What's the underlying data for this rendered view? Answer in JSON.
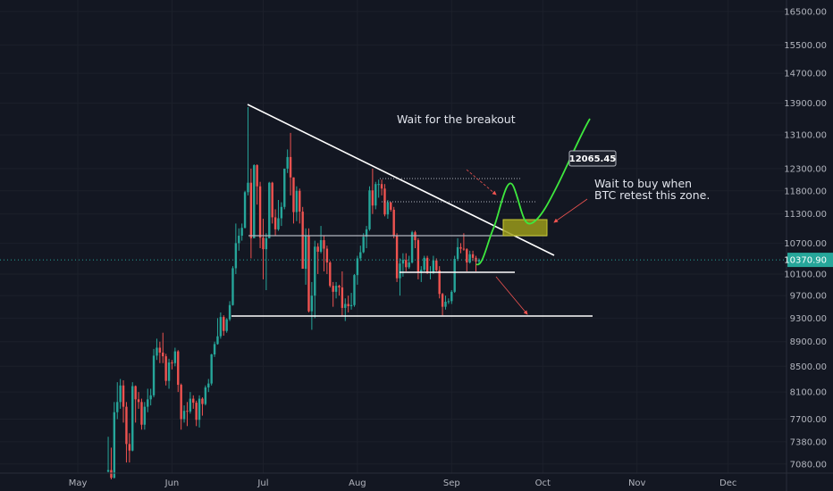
{
  "chart_data": {
    "type": "candlestick",
    "log_scale": true,
    "grid": true,
    "up_color": "#26a69a",
    "down_color": "#ef5350",
    "xlim": [
      -25.6,
      233.2
    ],
    "xticks": [
      {
        "value": 0,
        "label": "May"
      },
      {
        "value": 31,
        "label": "Jun"
      },
      {
        "value": 61,
        "label": "Jul"
      },
      {
        "value": 92,
        "label": "Aug"
      },
      {
        "value": 123,
        "label": "Sep"
      },
      {
        "value": 153,
        "label": "Oct"
      },
      {
        "value": 184,
        "label": "Nov"
      },
      {
        "value": 214,
        "label": "Dec"
      }
    ],
    "ylim": [
      6960,
      16860
    ],
    "yticks": [
      {
        "value": 16500,
        "label": "16500.00"
      },
      {
        "value": 15500,
        "label": "15500.00"
      },
      {
        "value": 14700,
        "label": "14700.00"
      },
      {
        "value": 13900,
        "label": "13900.00"
      },
      {
        "value": 13100,
        "label": "13100.00"
      },
      {
        "value": 12300,
        "label": "12300.00"
      },
      {
        "value": 11800,
        "label": "11800.00"
      },
      {
        "value": 11300,
        "label": "11300.00"
      },
      {
        "value": 10700,
        "label": "10700.00"
      },
      {
        "value": 10100,
        "label": "10100.00"
      },
      {
        "value": 9700,
        "label": "9700.00"
      },
      {
        "value": 9300,
        "label": "9300.00"
      },
      {
        "value": 8900,
        "label": "8900.00"
      },
      {
        "value": 8500,
        "label": "8500.00"
      },
      {
        "value": 8100,
        "label": "8100.00"
      },
      {
        "value": 7700,
        "label": "7700.00"
      },
      {
        "value": 7380,
        "label": "7380.00"
      },
      {
        "value": 7080,
        "label": "7080.00"
      }
    ],
    "last_price": {
      "value": 10370.9,
      "label": "10370.90",
      "color": "#26a69a"
    },
    "annotations": {
      "breakout": "Wait for the breakout",
      "retest": [
        "Wait to buy when",
        "BTC retest this zone."
      ],
      "price_tag": "12065.45"
    },
    "x": [
      10,
      11,
      12,
      13,
      14,
      15,
      16,
      17,
      18,
      19,
      20,
      21,
      22,
      23,
      24,
      25,
      26,
      27,
      28,
      29,
      30,
      31,
      32,
      33,
      34,
      35,
      36,
      37,
      38,
      39,
      40,
      41,
      42,
      43,
      44,
      45,
      46,
      47,
      48,
      49,
      50,
      51,
      52,
      53,
      54,
      55,
      56,
      57,
      58,
      59,
      60,
      61,
      62,
      63,
      64,
      65,
      66,
      67,
      68,
      69,
      70,
      71,
      72,
      73,
      74,
      75,
      76,
      77,
      78,
      79,
      80,
      81,
      82,
      83,
      84,
      85,
      86,
      87,
      88,
      89,
      90,
      91,
      92,
      93,
      94,
      95,
      96,
      97,
      98,
      99,
      100,
      101,
      102,
      103,
      104,
      105,
      106,
      107,
      108,
      109,
      110,
      111,
      112,
      113,
      114,
      115,
      116,
      117,
      118,
      119,
      120,
      121,
      122,
      123,
      124,
      125,
      126,
      127,
      128,
      129,
      130,
      131,
      132
    ],
    "candles": [
      [
        6980,
        7450,
        6970,
        7000
      ],
      [
        7000,
        7300,
        6880,
        6900
      ],
      [
        6900,
        7950,
        6890,
        7800
      ],
      [
        7800,
        8250,
        7700,
        7950
      ],
      [
        7950,
        8300,
        7850,
        8200
      ],
      [
        8200,
        8280,
        7650,
        7880
      ],
      [
        7880,
        7950,
        7100,
        7350
      ],
      [
        7350,
        7500,
        7100,
        7260
      ],
      [
        7260,
        8250,
        7250,
        8190
      ],
      [
        8190,
        8200,
        7650,
        7990
      ],
      [
        7990,
        8100,
        7850,
        7950
      ],
      [
        7950,
        8000,
        7550,
        7620
      ],
      [
        7620,
        7950,
        7550,
        7880
      ],
      [
        7880,
        8150,
        7800,
        7990
      ],
      [
        7990,
        8150,
        7900,
        8050
      ],
      [
        8050,
        8780,
        8020,
        8670
      ],
      [
        8670,
        8950,
        8600,
        8800
      ],
      [
        8800,
        8900,
        8550,
        8720
      ],
      [
        8720,
        9050,
        8550,
        8660
      ],
      [
        8660,
        8700,
        8200,
        8270
      ],
      [
        8270,
        8620,
        8150,
        8560
      ],
      [
        8560,
        8600,
        8450,
        8550
      ],
      [
        8550,
        8800,
        8500,
        8740
      ],
      [
        8740,
        8760,
        8100,
        8210
      ],
      [
        8210,
        8230,
        7550,
        7700
      ],
      [
        7700,
        7900,
        7650,
        7820
      ],
      [
        7820,
        7950,
        7600,
        7810
      ],
      [
        7810,
        8100,
        7780,
        8000
      ],
      [
        8000,
        8050,
        7850,
        7940
      ],
      [
        7940,
        7970,
        7600,
        7690
      ],
      [
        7690,
        8050,
        7580,
        8000
      ],
      [
        8000,
        8020,
        7750,
        7920
      ],
      [
        7920,
        8200,
        7900,
        8170
      ],
      [
        8170,
        8300,
        8100,
        8230
      ],
      [
        8230,
        8700,
        8200,
        8690
      ],
      [
        8690,
        8900,
        8650,
        8860
      ],
      [
        8860,
        9300,
        8850,
        8990
      ],
      [
        8990,
        9400,
        8950,
        9320
      ],
      [
        9320,
        9350,
        9000,
        9080
      ],
      [
        9080,
        9300,
        9050,
        9280
      ],
      [
        9280,
        9600,
        9250,
        9530
      ],
      [
        9530,
        10250,
        9520,
        10210
      ],
      [
        10210,
        11100,
        10100,
        10700
      ],
      [
        10700,
        11000,
        10550,
        10850
      ],
      [
        10850,
        11100,
        10750,
        11010
      ],
      [
        11010,
        11800,
        11000,
        11770
      ],
      [
        11770,
        13800,
        11700,
        11980
      ],
      [
        11980,
        12300,
        10400,
        10800
      ],
      [
        10800,
        12400,
        10800,
        12380
      ],
      [
        12380,
        12400,
        11500,
        11900
      ],
      [
        11900,
        12000,
        10600,
        10810
      ],
      [
        10810,
        11200,
        10000,
        10580
      ],
      [
        10580,
        10900,
        9800,
        10800
      ],
      [
        10800,
        12000,
        10800,
        11980
      ],
      [
        11980,
        12000,
        11100,
        11230
      ],
      [
        11230,
        11400,
        10850,
        10980
      ],
      [
        10980,
        11600,
        10950,
        11210
      ],
      [
        11210,
        11550,
        11050,
        11450
      ],
      [
        11450,
        12300,
        11400,
        12300
      ],
      [
        12300,
        12750,
        12200,
        12570
      ],
      [
        12570,
        13150,
        11700,
        12100
      ],
      [
        12100,
        12100,
        11100,
        11340
      ],
      [
        11340,
        11900,
        11150,
        11800
      ],
      [
        11800,
        11850,
        11100,
        11350
      ],
      [
        11350,
        11450,
        10200,
        10200
      ],
      [
        10200,
        11000,
        9900,
        10850
      ],
      [
        10850,
        11000,
        9400,
        9420
      ],
      [
        9420,
        9950,
        9100,
        9700
      ],
      [
        9700,
        10750,
        9300,
        10630
      ],
      [
        10630,
        10700,
        10100,
        10530
      ],
      [
        10530,
        11050,
        10500,
        10760
      ],
      [
        10760,
        10850,
        10150,
        10590
      ],
      [
        10590,
        10650,
        10100,
        10320
      ],
      [
        10320,
        10350,
        9850,
        9880
      ],
      [
        9880,
        9950,
        9500,
        9770
      ],
      [
        9770,
        9950,
        9650,
        9880
      ],
      [
        9880,
        9900,
        9700,
        9850
      ],
      [
        9850,
        10150,
        9350,
        9480
      ],
      [
        9480,
        9650,
        9250,
        9550
      ],
      [
        9550,
        9700,
        9400,
        9510
      ],
      [
        9510,
        9750,
        9450,
        9530
      ],
      [
        9530,
        10100,
        9500,
        10080
      ],
      [
        10080,
        10450,
        9900,
        10400
      ],
      [
        10400,
        10650,
        10350,
        10520
      ],
      [
        10520,
        10900,
        10500,
        10830
      ],
      [
        10830,
        11050,
        10600,
        10980
      ],
      [
        10980,
        11900,
        10950,
        11810
      ],
      [
        11810,
        12300,
        11300,
        11480
      ],
      [
        11480,
        12000,
        11400,
        11950
      ],
      [
        11950,
        12050,
        11650,
        11950
      ],
      [
        11950,
        12050,
        11700,
        11850
      ],
      [
        11850,
        11950,
        11250,
        11290
      ],
      [
        11290,
        11600,
        11200,
        11550
      ],
      [
        11550,
        11550,
        11350,
        11390
      ],
      [
        11390,
        11450,
        10800,
        10860
      ],
      [
        10860,
        10900,
        9950,
        10020
      ],
      [
        10020,
        10400,
        9700,
        10300
      ],
      [
        10300,
        10500,
        10050,
        10370
      ],
      [
        10370,
        10500,
        10150,
        10230
      ],
      [
        10230,
        10450,
        10200,
        10320
      ],
      [
        10320,
        10950,
        10300,
        10920
      ],
      [
        10920,
        10950,
        10600,
        10760
      ],
      [
        10760,
        10800,
        10000,
        10130
      ],
      [
        10130,
        10250,
        9950,
        10180
      ],
      [
        10180,
        10450,
        10150,
        10410
      ],
      [
        10410,
        10450,
        10100,
        10140
      ],
      [
        10140,
        10250,
        10000,
        10140
      ],
      [
        10140,
        10450,
        10100,
        10360
      ],
      [
        10360,
        10400,
        10150,
        10170
      ],
      [
        10170,
        10250,
        9650,
        9730
      ],
      [
        9730,
        9750,
        9350,
        9500
      ],
      [
        9500,
        9700,
        9450,
        9590
      ],
      [
        9590,
        9650,
        9550,
        9600
      ],
      [
        9600,
        9800,
        9550,
        9770
      ],
      [
        9770,
        10450,
        9750,
        10390
      ],
      [
        10390,
        10800,
        10350,
        10620
      ],
      [
        10620,
        10700,
        10500,
        10590
      ],
      [
        10590,
        10900,
        10550,
        10580
      ],
      [
        10580,
        10600,
        10150,
        10320
      ],
      [
        10320,
        10550,
        10300,
        10480
      ],
      [
        10480,
        10550,
        10350,
        10410
      ],
      [
        10410,
        10450,
        10150,
        10340
      ],
      [
        10340,
        10400,
        10300,
        10370
      ]
    ]
  }
}
